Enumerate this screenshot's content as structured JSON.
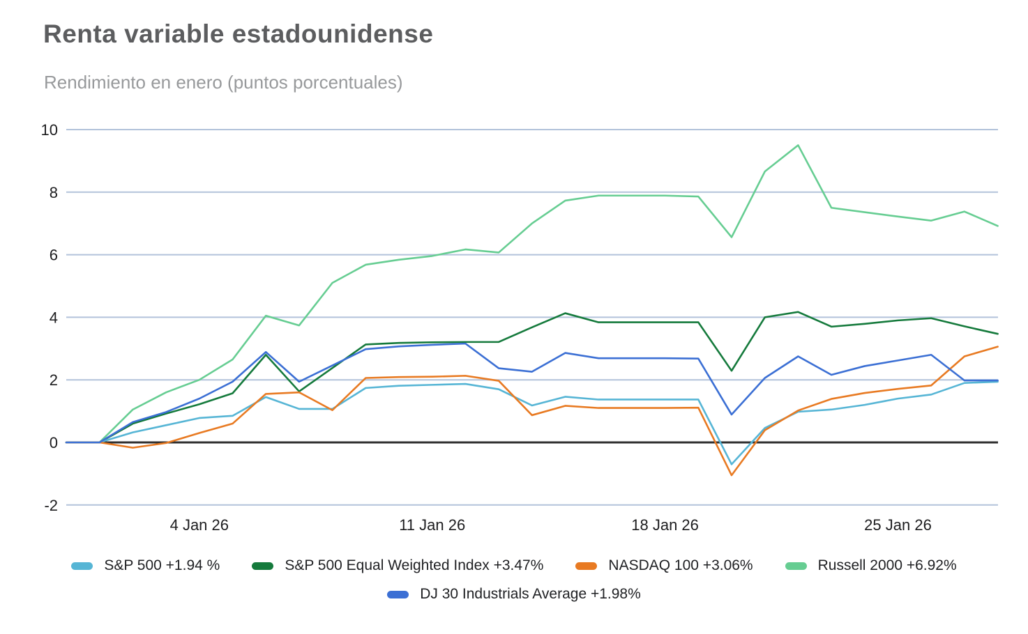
{
  "chart_data": {
    "type": "line",
    "title": "Renta variable estadounidense",
    "subtitle": "Rendimiento en enero (puntos porcentuales)",
    "grid": true,
    "legend_position": "bottom",
    "ylim": [
      -2,
      10
    ],
    "y_ticks": [
      10,
      8,
      6,
      4,
      2,
      0,
      -2
    ],
    "x_ticks": [
      {
        "index": 4,
        "label": "4 Jan 26"
      },
      {
        "index": 11,
        "label": "11 Jan 26"
      },
      {
        "index": 18,
        "label": "18 Jan 26"
      },
      {
        "index": 25,
        "label": "25 Jan 26"
      }
    ],
    "n_points": 29,
    "series": [
      {
        "name": "S&P 500",
        "legend_label": "S&P 500 +1.94 %",
        "final_change_pct": 1.94,
        "color": "#56b5d5",
        "values": [
          0,
          0,
          0.32,
          0.55,
          0.78,
          0.85,
          1.45,
          1.07,
          1.07,
          1.74,
          1.81,
          1.84,
          1.87,
          1.7,
          1.18,
          1.46,
          1.37,
          1.37,
          1.37,
          1.37,
          -0.7,
          0.46,
          0.98,
          1.05,
          1.2,
          1.4,
          1.53,
          1.9,
          1.94
        ]
      },
      {
        "name": "S&P 500 Equal Weighted Index",
        "legend_label": "S&P 500 Equal Weighted Index +3.47%",
        "final_change_pct": 3.47,
        "color": "#157a3c",
        "values": [
          0,
          0,
          0.6,
          0.92,
          1.22,
          1.57,
          2.8,
          1.63,
          2.38,
          3.13,
          3.18,
          3.2,
          3.21,
          3.21,
          3.68,
          4.13,
          3.84,
          3.84,
          3.84,
          3.84,
          2.29,
          4.0,
          4.17,
          3.7,
          3.79,
          3.9,
          3.97,
          3.71,
          3.47
        ]
      },
      {
        "name": "NASDAQ 100",
        "legend_label": "NASDAQ 100 +3.06%",
        "final_change_pct": 3.06,
        "color": "#e87a22",
        "values": [
          0,
          0,
          -0.17,
          -0.02,
          0.3,
          0.6,
          1.55,
          1.6,
          1.03,
          2.06,
          2.09,
          2.1,
          2.13,
          1.97,
          0.87,
          1.17,
          1.1,
          1.1,
          1.1,
          1.11,
          -1.05,
          0.39,
          1.02,
          1.39,
          1.58,
          1.71,
          1.82,
          2.75,
          3.06
        ]
      },
      {
        "name": "Russell 2000",
        "legend_label": "Russell 2000 +6.92%",
        "final_change_pct": 6.92,
        "color": "#66cd92",
        "values": [
          0,
          0,
          1.05,
          1.6,
          2.0,
          2.65,
          4.05,
          3.74,
          5.1,
          5.68,
          5.84,
          5.96,
          6.17,
          6.07,
          7.0,
          7.73,
          7.89,
          7.89,
          7.89,
          7.86,
          6.56,
          8.66,
          9.5,
          7.5,
          7.36,
          7.22,
          7.09,
          7.38,
          6.92
        ]
      },
      {
        "name": "DJ 30 Industrials Average",
        "legend_label": "DJ 30 Industrials Average +1.98%",
        "final_change_pct": 1.98,
        "color": "#3b6fd4",
        "values": [
          0,
          0,
          0.65,
          0.97,
          1.4,
          1.94,
          2.89,
          1.94,
          2.46,
          2.98,
          3.07,
          3.12,
          3.16,
          2.37,
          2.26,
          2.86,
          2.69,
          2.69,
          2.69,
          2.68,
          0.89,
          2.06,
          2.75,
          2.16,
          2.44,
          2.62,
          2.8,
          1.98,
          1.98
        ]
      }
    ],
    "colors": {
      "grid_line": "#b2c2da",
      "zero_line": "#2e2e2e",
      "title": "#5c5d5f",
      "subtitle": "#97999b",
      "tick_label": "#1d1d1f",
      "legend_text": "#202124",
      "background": "#ffffff"
    },
    "draw_order": [
      3,
      1,
      0,
      2,
      4
    ],
    "legend_rows": [
      [
        0,
        1,
        2,
        3
      ],
      [
        4
      ]
    ]
  }
}
